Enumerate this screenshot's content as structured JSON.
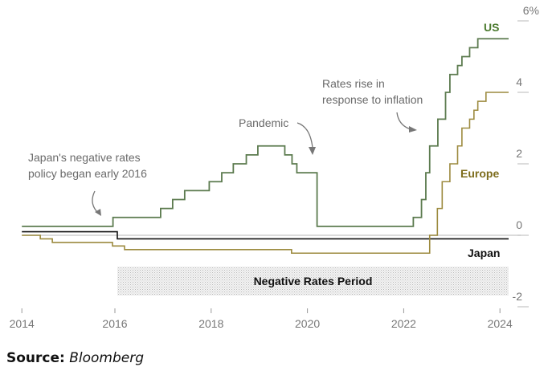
{
  "chart_data": {
    "type": "line",
    "step": true,
    "title": "",
    "xlabel": "",
    "ylabel": "",
    "xlim": [
      2014,
      2024.2
    ],
    "ylim": [
      -2,
      6
    ],
    "x_ticks": [
      2014,
      2016,
      2018,
      2020,
      2022,
      2024
    ],
    "x_tick_labels": [
      "2014",
      "2016",
      "2018",
      "2020",
      "2022",
      "2024"
    ],
    "y_ticks": [
      6,
      4,
      2,
      0,
      -2
    ],
    "y_tick_labels": [
      "6%",
      "4",
      "2",
      "0",
      "-2"
    ],
    "y_axis_side": "right",
    "grid": "zero line only",
    "series": [
      {
        "name": "US",
        "color": "#5c7b4f",
        "label_color": "#4b7a2e",
        "points": [
          [
            2014.0,
            0.25
          ],
          [
            2015.96,
            0.5
          ],
          [
            2016.95,
            0.75
          ],
          [
            2017.2,
            1.0
          ],
          [
            2017.45,
            1.25
          ],
          [
            2017.96,
            1.5
          ],
          [
            2018.22,
            1.75
          ],
          [
            2018.46,
            2.0
          ],
          [
            2018.73,
            2.25
          ],
          [
            2018.97,
            2.5
          ],
          [
            2019.53,
            2.25
          ],
          [
            2019.68,
            2.0
          ],
          [
            2019.78,
            1.75
          ],
          [
            2020.2,
            0.25
          ],
          [
            2022.2,
            0.5
          ],
          [
            2022.37,
            1.0
          ],
          [
            2022.46,
            1.75
          ],
          [
            2022.54,
            2.5
          ],
          [
            2022.71,
            3.25
          ],
          [
            2022.87,
            4.0
          ],
          [
            2022.96,
            4.5
          ],
          [
            2023.12,
            4.75
          ],
          [
            2023.21,
            5.0
          ],
          [
            2023.37,
            5.25
          ],
          [
            2023.54,
            5.5
          ],
          [
            2024.18,
            5.5
          ]
        ]
      },
      {
        "name": "Europe",
        "color": "#9c8a3e",
        "label_color": "#7d6c1c",
        "points": [
          [
            2014.0,
            0.0
          ],
          [
            2014.45,
            -0.1
          ],
          [
            2014.7,
            -0.2
          ],
          [
            2015.95,
            -0.3
          ],
          [
            2016.2,
            -0.4
          ],
          [
            2019.67,
            -0.5
          ],
          [
            2022.54,
            0.0
          ],
          [
            2022.7,
            0.75
          ],
          [
            2022.8,
            1.5
          ],
          [
            2022.96,
            2.0
          ],
          [
            2023.12,
            2.5
          ],
          [
            2023.21,
            3.0
          ],
          [
            2023.37,
            3.25
          ],
          [
            2023.46,
            3.5
          ],
          [
            2023.54,
            3.75
          ],
          [
            2023.71,
            4.0
          ],
          [
            2024.18,
            4.0
          ]
        ]
      },
      {
        "name": "Japan",
        "color": "#111111",
        "label_color": "#111111",
        "points": [
          [
            2014.0,
            0.1
          ],
          [
            2016.05,
            -0.1
          ],
          [
            2024.18,
            -0.1
          ]
        ]
      }
    ],
    "shaded_region": {
      "label": "Negative Rates Period",
      "x_range": [
        2016.05,
        2024.18
      ],
      "pattern": "dotted"
    },
    "annotations": [
      {
        "name": "japan-negative-rates",
        "lines": [
          "Japan's negative rates",
          "policy began early 2016"
        ]
      },
      {
        "name": "pandemic",
        "lines": [
          "Pandemic"
        ]
      },
      {
        "name": "rates-rise",
        "lines": [
          "Rates rise in",
          "response to inflation"
        ]
      }
    ]
  },
  "source": {
    "label": "Source:",
    "value": "Bloomberg"
  }
}
